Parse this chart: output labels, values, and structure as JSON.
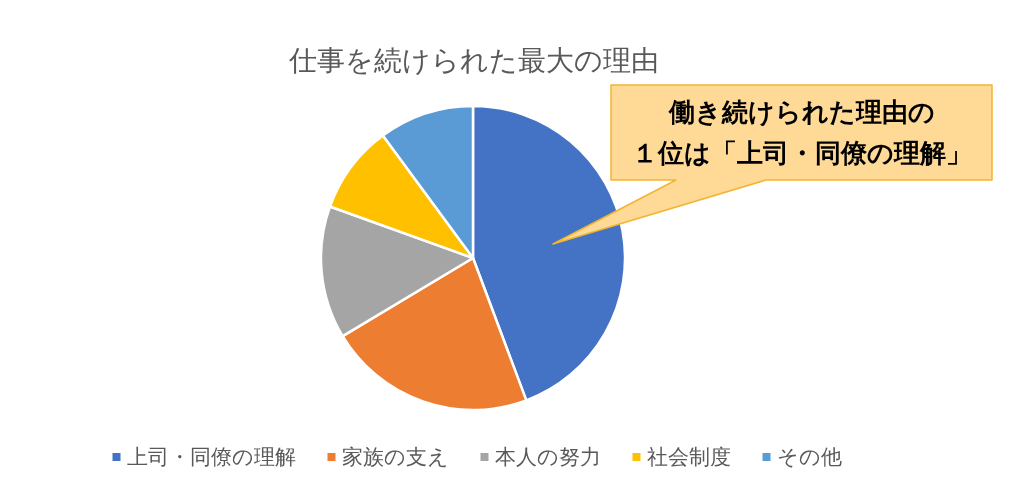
{
  "chart_data": {
    "type": "pie",
    "title": "仕事を続けられた最大の理由",
    "categories": [
      "上司・同僚の理解",
      "家族の支え",
      "本人の努力",
      "社会制度",
      "その他"
    ],
    "values": [
      44.3,
      22.1,
      14.1,
      9.4,
      10.1
    ],
    "colors": [
      "#4472c4",
      "#ed7d31",
      "#a5a5a5",
      "#ffc000",
      "#5b9bd5"
    ],
    "legend": "bottom",
    "annotations": [
      "働き続けられた理由の１位は「上司・同僚の理解」"
    ]
  }
}
